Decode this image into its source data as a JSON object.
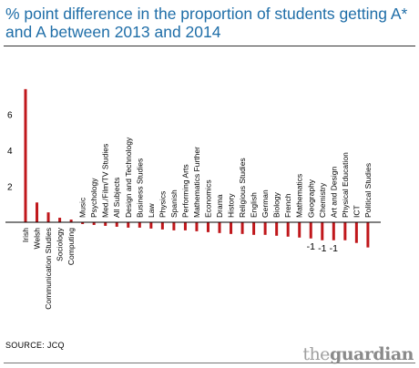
{
  "title": "% point difference in the proportion of students getting A* and A between 2013 and 2014",
  "source": "SOURCE: JCQ",
  "brand": {
    "the": "the",
    "name": "guardian"
  },
  "colors": {
    "bar": "#c0171b",
    "title": "#1f6ea8",
    "axis": "#000000"
  },
  "chart_data": {
    "type": "bar",
    "title": "% point difference in the proportion of students getting A* and A between 2013 and 2014",
    "xlabel": "",
    "ylabel": "",
    "ylim": [
      -3,
      7.6
    ],
    "yticks": [
      2,
      4,
      6
    ],
    "grid": false,
    "categories": [
      "Irish",
      "Welsh",
      "Communication Studies",
      "Sociology",
      "Computing",
      "Music",
      "Psychology",
      "Med./Film/TV Studies",
      "All Subjects",
      "Design and Technology",
      "Business Studies",
      "Law",
      "Physics",
      "Spanish",
      "Performing Arts",
      "Mathematics Further",
      "Economics",
      "Drama",
      "History",
      "Religious Studies",
      "English",
      "German",
      "Biology",
      "French",
      "Mathematics",
      "Geography",
      "Chemistry",
      "Art and Design",
      "Physical Education",
      "ICT",
      "Political Studies"
    ],
    "values": [
      7.4,
      1.1,
      0.55,
      0.25,
      0.15,
      -0.1,
      -0.15,
      -0.2,
      -0.25,
      -0.3,
      -0.3,
      -0.35,
      -0.4,
      -0.45,
      -0.45,
      -0.5,
      -0.55,
      -0.6,
      -0.65,
      -0.65,
      -0.7,
      -0.7,
      -0.75,
      -0.8,
      -0.85,
      -0.9,
      -1,
      -1,
      -1,
      -1.15,
      -1.4
    ],
    "data_labels": [
      {
        "category": "Geography",
        "text": "-1"
      },
      {
        "category": "Chemistry",
        "text": "-1"
      },
      {
        "category": "Art and Design",
        "text": "-1"
      }
    ]
  }
}
